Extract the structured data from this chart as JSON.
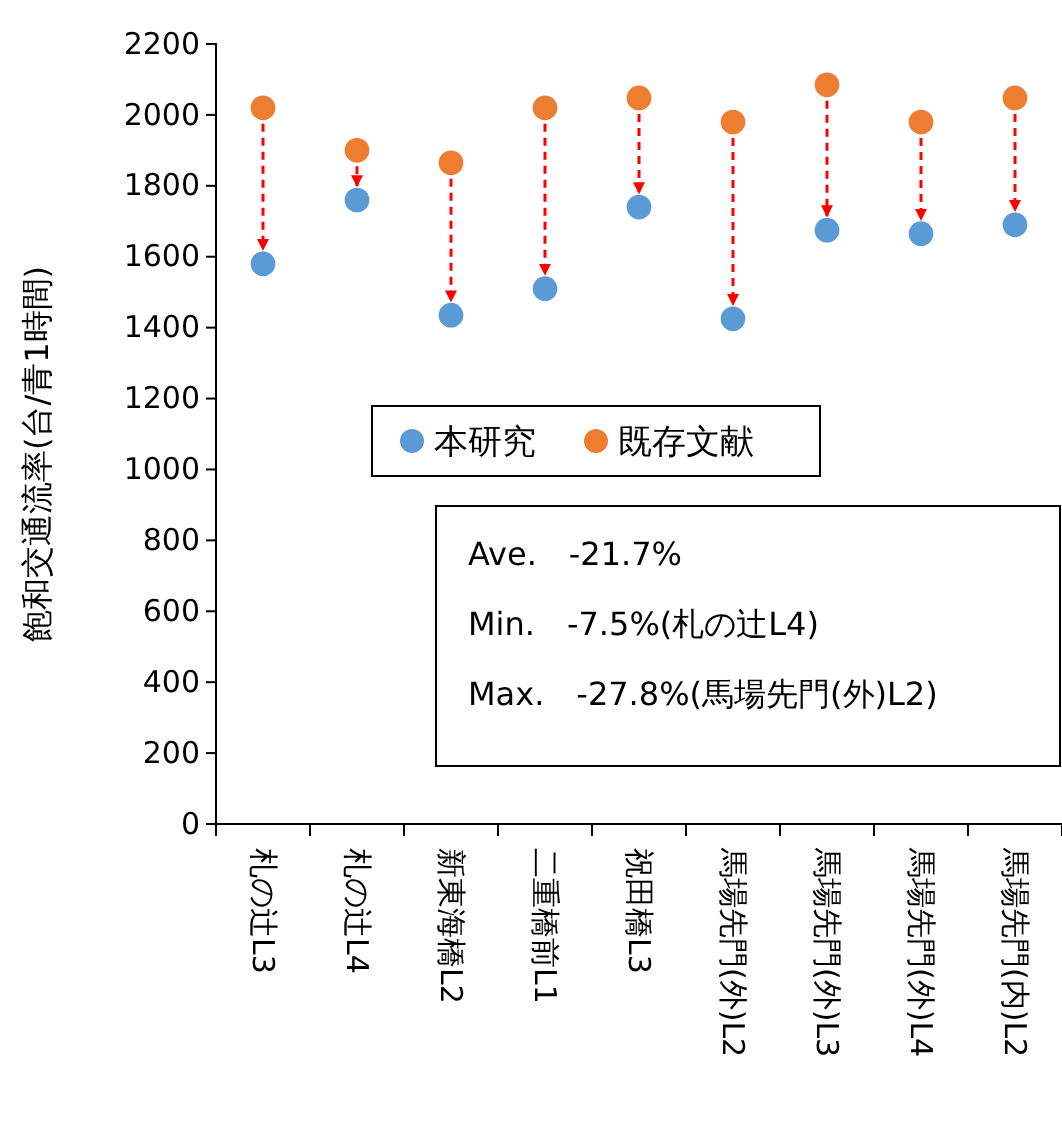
{
  "chart_data": {
    "type": "scatter",
    "ylabel": "飽和交通流率(台/青1時間)",
    "categories": [
      "札の辻L3",
      "札の辻L4",
      "新東海橋L2",
      "二重橋前L1",
      "祝田橋L3",
      "馬場先門(外)L2",
      "馬場先門(外)L3",
      "馬場先門(外)L4",
      "馬場先門(内)L2"
    ],
    "series": [
      {
        "name": "本研究",
        "color": "#5b9bd5",
        "values": [
          1580,
          1760,
          1435,
          1510,
          1740,
          1425,
          1675,
          1665,
          1690
        ]
      },
      {
        "name": "既存文献",
        "color": "#ed7d31",
        "values": [
          2020,
          1900,
          1865,
          2020,
          2048,
          1980,
          2085,
          1980,
          2048
        ]
      }
    ],
    "ylim": [
      0,
      2200
    ],
    "yticks": [
      0,
      200,
      400,
      600,
      800,
      1000,
      1200,
      1400,
      1600,
      1800,
      2000,
      2200
    ],
    "grid": false,
    "legend": "center",
    "marker": "circle",
    "annotations": [
      "Ave.　-21.7%",
      "Min.　-7.5%(札の辻L4)",
      "Max.　-27.8%(馬場先門(外)L2)"
    ]
  }
}
